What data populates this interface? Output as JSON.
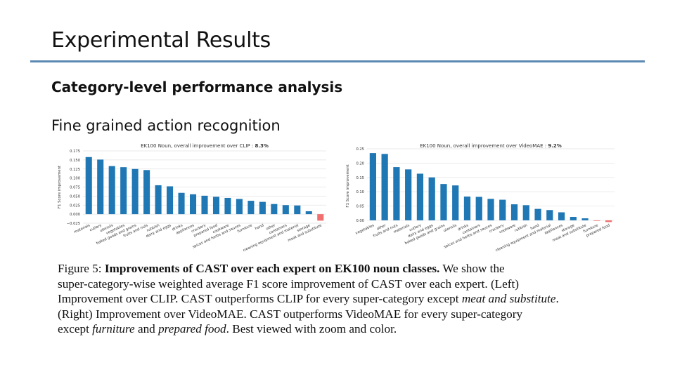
{
  "slide": {
    "title": "Experimental Results",
    "section": "Category-level performance analysis",
    "subheading": "Fine grained action recognition"
  },
  "caption": {
    "label": "Figure 5:",
    "bold": "Improvements of CAST over each expert on EK100 noun classes.",
    "line1_rest": " We show the",
    "line2": "super-category-wise weighted average F1 score improvement of CAST over each expert. (Left)",
    "line3a": "Improvement over CLIP. CAST outperforms CLIP for every super-category except ",
    "line3_em": "meat and substitute",
    "line3b": ".",
    "line4": "(Right) Improvement over VideoMAE. CAST outperforms VideoMAE for every super-category",
    "line5a": "except ",
    "line5_em1": "furniture",
    "line5b": " and ",
    "line5_em2": "prepared food",
    "line5c": ". Best viewed with zoom and color."
  },
  "chart_data": [
    {
      "type": "bar",
      "title": "EK100 Noun, overall improvement over CLIP : ",
      "title_value": "8.3%",
      "ylabel": "F1 Score improvement",
      "ylim": [
        -0.025,
        0.175
      ],
      "yticks": [
        "0.175",
        "0.150",
        "0.125",
        "0.100",
        "0.075",
        "0.050",
        "0.025",
        "0.000",
        "−0.025"
      ],
      "ytick_values": [
        0.175,
        0.15,
        0.125,
        0.1,
        0.075,
        0.05,
        0.025,
        0.0,
        -0.025
      ],
      "grid": true,
      "positive_color": "#1f77b4",
      "negative_color": "#f07070",
      "categories": [
        "materials",
        "cutlery",
        "utensils",
        "vegetables",
        "baked goods and grains",
        "fruits and nuts",
        "rubbish",
        "dairy and eggs",
        "drinks",
        "appliances",
        "crockery",
        "prepared food",
        "cookware",
        "spices and herbs and sauces",
        "furniture",
        "hand",
        "other",
        "containers",
        "cleaning equipment and material",
        "storage",
        "meat and substitute"
      ],
      "values": [
        0.158,
        0.151,
        0.133,
        0.13,
        0.125,
        0.122,
        0.08,
        0.077,
        0.059,
        0.055,
        0.051,
        0.048,
        0.045,
        0.042,
        0.037,
        0.034,
        0.028,
        0.025,
        0.024,
        0.008,
        -0.018
      ]
    },
    {
      "type": "bar",
      "title": "EK100 Noun, overall improvement over VideoMAE : ",
      "title_value": "9.2%",
      "ylabel": "F1 Score improvement",
      "ylim": [
        -0.01,
        0.25
      ],
      "yticks": [
        "0.25",
        "0.20",
        "0.15",
        "0.10",
        "0.05",
        "0.00"
      ],
      "ytick_values": [
        0.25,
        0.2,
        0.15,
        0.1,
        0.05,
        0.0
      ],
      "grid": true,
      "positive_color": "#1f77b4",
      "negative_color": "#f07070",
      "categories": [
        "vegetables",
        "other",
        "fruits and nuts",
        "materials",
        "cutlery",
        "dairy and eggs",
        "baked goods and grains",
        "utensils",
        "drinks",
        "containers",
        "spices and herbs and sauces",
        "crockery",
        "cookware",
        "rubbish",
        "hand",
        "cleaning equipment and material",
        "appliances",
        "storage",
        "meat and substitute",
        "furniture",
        "prepared food"
      ],
      "values": [
        0.235,
        0.232,
        0.186,
        0.178,
        0.163,
        0.15,
        0.127,
        0.122,
        0.083,
        0.082,
        0.075,
        0.072,
        0.056,
        0.053,
        0.04,
        0.036,
        0.028,
        0.012,
        0.007,
        -0.002,
        -0.006
      ]
    }
  ]
}
